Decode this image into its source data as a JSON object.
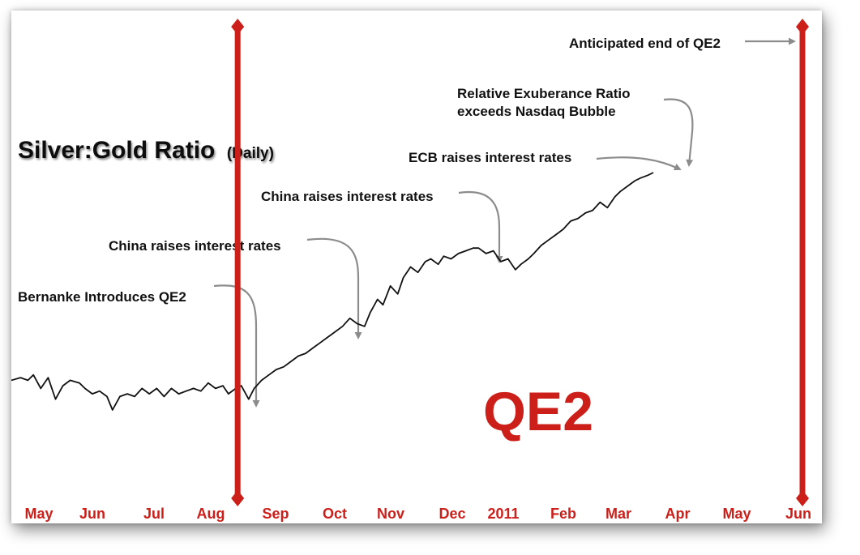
{
  "chart_data": {
    "type": "line",
    "title": "Silver:Gold Ratio",
    "subtitle": "(Daily)",
    "big_label": "QE2",
    "accent_color": "#cc1f1a",
    "line_color": "#111111",
    "arrow_color": "#8c8c8c",
    "xlabels": [
      "May",
      "Jun",
      "Jul",
      "Aug",
      "Sep",
      "Oct",
      "Nov",
      "Dec",
      "2011",
      "Feb",
      "Mar",
      "Apr",
      "May",
      "Jun"
    ],
    "x_start": "2010-04-26",
    "x_end": "2011-06-30",
    "y_relative_range": [
      0,
      100
    ],
    "markers": [
      {
        "name": "qe2-start",
        "date": "2010-08-27"
      },
      {
        "name": "qe2-end",
        "date": "2011-06-30"
      }
    ],
    "series": [
      {
        "points": [
          [
            "2010-04-26",
            20
          ],
          [
            "2010-05-01",
            21
          ],
          [
            "2010-05-05",
            20
          ],
          [
            "2010-05-08",
            22
          ],
          [
            "2010-05-12",
            17
          ],
          [
            "2010-05-16",
            21
          ],
          [
            "2010-05-20",
            13
          ],
          [
            "2010-05-24",
            18
          ],
          [
            "2010-05-28",
            20
          ],
          [
            "2010-06-02",
            19
          ],
          [
            "2010-06-05",
            17
          ],
          [
            "2010-06-09",
            15
          ],
          [
            "2010-06-13",
            16
          ],
          [
            "2010-06-17",
            14
          ],
          [
            "2010-06-20",
            9
          ],
          [
            "2010-06-24",
            14
          ],
          [
            "2010-06-28",
            15
          ],
          [
            "2010-07-02",
            14
          ],
          [
            "2010-07-06",
            17
          ],
          [
            "2010-07-10",
            15
          ],
          [
            "2010-07-14",
            17
          ],
          [
            "2010-07-18",
            14
          ],
          [
            "2010-07-22",
            17
          ],
          [
            "2010-07-26",
            15
          ],
          [
            "2010-07-30",
            16
          ],
          [
            "2010-08-03",
            17
          ],
          [
            "2010-08-07",
            16
          ],
          [
            "2010-08-11",
            19
          ],
          [
            "2010-08-15",
            17
          ],
          [
            "2010-08-19",
            18
          ],
          [
            "2010-08-22",
            15
          ],
          [
            "2010-08-26",
            17
          ],
          [
            "2010-08-29",
            18
          ],
          [
            "2010-09-02",
            13
          ],
          [
            "2010-09-05",
            17
          ],
          [
            "2010-09-09",
            20
          ],
          [
            "2010-09-13",
            22
          ],
          [
            "2010-09-17",
            24
          ],
          [
            "2010-09-21",
            25
          ],
          [
            "2010-09-25",
            27
          ],
          [
            "2010-09-29",
            29
          ],
          [
            "2010-10-03",
            30
          ],
          [
            "2010-10-07",
            32
          ],
          [
            "2010-10-11",
            34
          ],
          [
            "2010-10-15",
            36
          ],
          [
            "2010-10-19",
            38
          ],
          [
            "2010-10-23",
            40
          ],
          [
            "2010-10-27",
            43
          ],
          [
            "2010-10-31",
            41
          ],
          [
            "2010-11-04",
            40
          ],
          [
            "2010-11-07",
            45
          ],
          [
            "2010-11-11",
            50
          ],
          [
            "2010-11-14",
            48
          ],
          [
            "2010-11-18",
            55
          ],
          [
            "2010-11-22",
            52
          ],
          [
            "2010-11-25",
            58
          ],
          [
            "2010-11-29",
            62
          ],
          [
            "2010-12-03",
            60
          ],
          [
            "2010-12-07",
            64
          ],
          [
            "2010-12-10",
            65
          ],
          [
            "2010-12-14",
            63
          ],
          [
            "2010-12-17",
            66
          ],
          [
            "2010-12-21",
            65
          ],
          [
            "2010-12-25",
            67
          ],
          [
            "2010-12-29",
            68
          ],
          [
            "2011-01-02",
            69
          ],
          [
            "2011-01-05",
            69
          ],
          [
            "2011-01-09",
            67
          ],
          [
            "2011-01-13",
            68
          ],
          [
            "2011-01-17",
            64
          ],
          [
            "2011-01-21",
            65
          ],
          [
            "2011-01-25",
            61
          ],
          [
            "2011-01-28",
            63
          ],
          [
            "2011-02-01",
            65
          ],
          [
            "2011-02-04",
            67
          ],
          [
            "2011-02-08",
            70
          ],
          [
            "2011-02-12",
            72
          ],
          [
            "2011-02-16",
            74
          ],
          [
            "2011-02-20",
            76
          ],
          [
            "2011-02-24",
            79
          ],
          [
            "2011-02-28",
            80
          ],
          [
            "2011-03-04",
            82
          ],
          [
            "2011-03-08",
            83
          ],
          [
            "2011-03-12",
            86
          ],
          [
            "2011-03-16",
            84
          ],
          [
            "2011-03-20",
            88
          ],
          [
            "2011-03-23",
            90
          ],
          [
            "2011-03-27",
            92
          ],
          [
            "2011-03-31",
            94
          ],
          [
            "2011-04-03",
            95
          ],
          [
            "2011-04-07",
            96
          ],
          [
            "2011-04-10",
            97
          ]
        ]
      }
    ],
    "annotations": [
      {
        "lines": [
          "Bernanke Introduces QE2"
        ],
        "date": "2010-08-27"
      },
      {
        "lines": [
          "China raises interest rates"
        ],
        "date": "2010-10-19"
      },
      {
        "lines": [
          "China raises interest rates"
        ],
        "date": "2010-12-25"
      },
      {
        "lines": [
          "ECB raises interest rates"
        ],
        "date": "2011-04-07"
      },
      {
        "lines": [
          "Relative Exuberance Ratio",
          "exceeds Nasdaq Bubble"
        ],
        "date": "2011-04-07"
      },
      {
        "lines": [
          "Anticipated end of QE2"
        ],
        "date": "2011-06-30"
      }
    ]
  }
}
